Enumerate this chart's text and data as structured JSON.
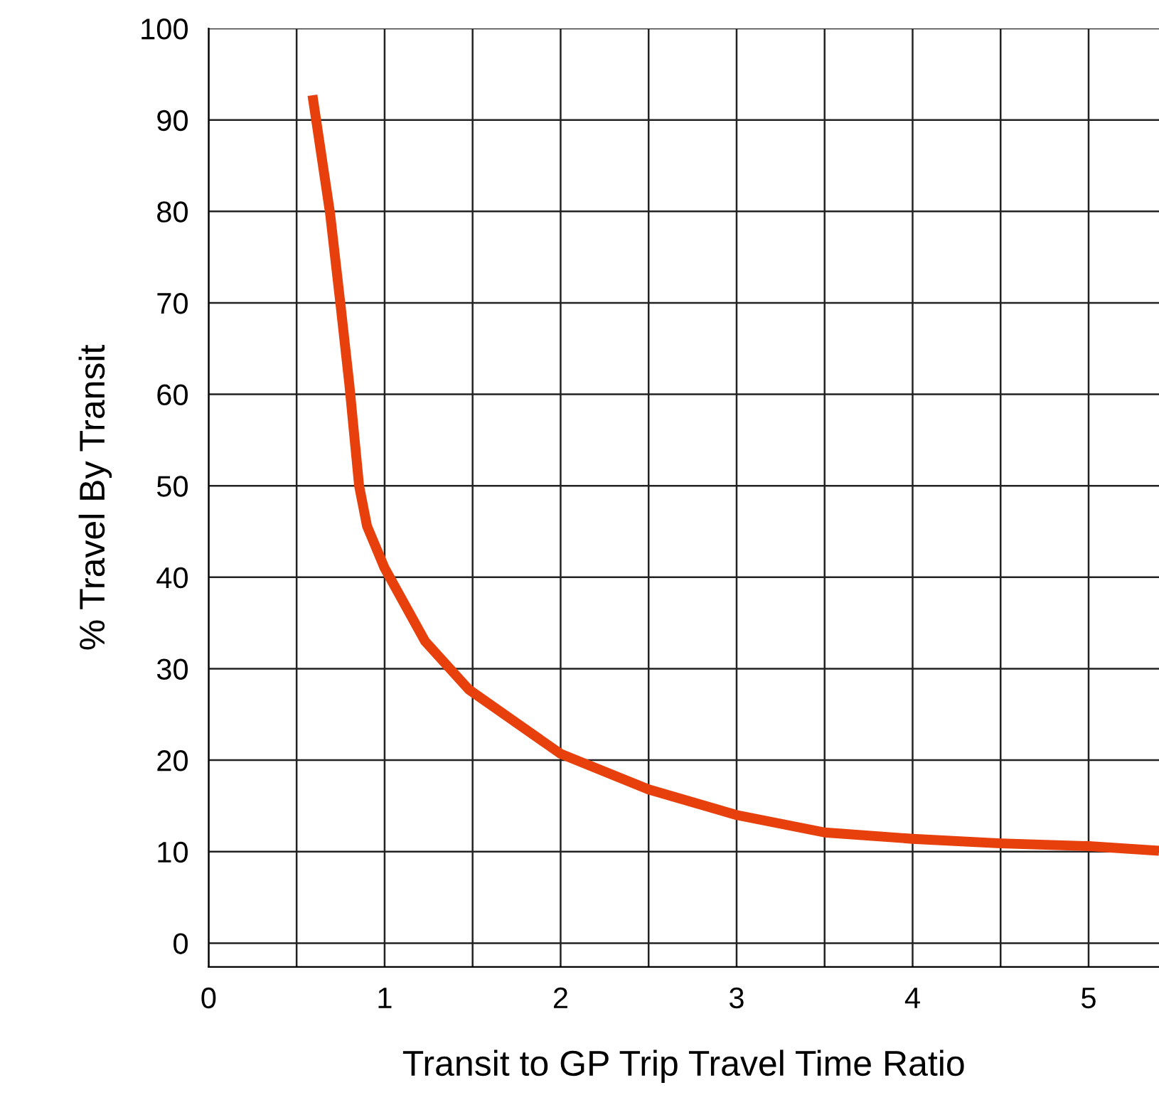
{
  "chart_data": {
    "type": "line",
    "xlabel": "Transit to GP Trip Travel Time Ratio",
    "ylabel": "% Travel By Transit",
    "x": [
      0.59,
      0.69,
      0.75,
      0.8,
      0.855,
      0.9,
      1.0,
      1.23,
      1.48,
      2.0,
      2.5,
      3.0,
      3.5,
      4.0,
      4.5,
      5.0,
      5.4
    ],
    "series": [
      {
        "color": "#e8400c",
        "values": [
          92.7,
          79.8,
          69.7,
          61,
          50,
          45.6,
          41,
          33,
          27.7,
          20.7,
          16.8,
          14,
          12.1,
          11.4,
          10.9,
          10.6,
          10.1
        ]
      }
    ],
    "xlim": [
      0,
      5.4
    ],
    "ylim": [
      -2.6,
      100
    ],
    "xticks": [
      0,
      {
        "value": 0.5,
        "label": null
      },
      1,
      {
        "value": 1.5,
        "label": null
      },
      2,
      {
        "value": 2.5,
        "label": null
      },
      3,
      {
        "value": 3.5,
        "label": null
      },
      4,
      {
        "value": 4.5,
        "label": null
      },
      5
    ],
    "yticks": [
      0,
      10,
      20,
      30,
      40,
      50,
      60,
      70,
      80,
      90,
      100
    ],
    "grid": true,
    "marker": "none",
    "line_style": "solid"
  }
}
